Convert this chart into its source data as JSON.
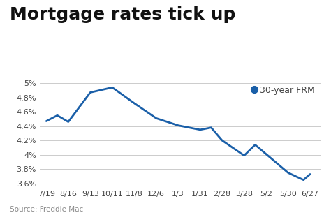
{
  "title": "Mortgage rates tick up",
  "legend_label": "30-year FRM",
  "source": "Source: Freddie Mac",
  "line_color": "#1a5fa8",
  "background_color": "#ffffff",
  "x_labels": [
    "7/19",
    "8/16",
    "9/13",
    "10/11",
    "11/8",
    "12/6",
    "1/3",
    "1/31",
    "2/28",
    "3/28",
    "5/2",
    "5/30",
    "6/27"
  ],
  "x_values": [
    0,
    1,
    2,
    3,
    4,
    5,
    6,
    7,
    8,
    9,
    10,
    11,
    12
  ],
  "y_values": [
    4.47,
    4.55,
    4.46,
    4.87,
    4.94,
    4.72,
    4.51,
    4.41,
    4.35,
    4.38,
    4.2,
    3.99,
    4.14,
    4.01,
    3.75,
    3.65,
    3.73
  ],
  "x_positions": [
    0,
    0.5,
    1,
    2,
    3,
    4,
    5,
    6,
    7,
    7.5,
    8,
    9,
    9.5,
    10,
    11,
    11.7,
    12
  ],
  "ylim": [
    3.55,
    5.05
  ],
  "yticks": [
    3.6,
    3.8,
    4.0,
    4.2,
    4.4,
    4.6,
    4.8,
    5.0
  ],
  "title_fontsize": 18,
  "label_fontsize": 8,
  "source_fontsize": 7.5,
  "legend_fontsize": 9,
  "grid_color": "#cccccc",
  "tick_color": "#444444"
}
